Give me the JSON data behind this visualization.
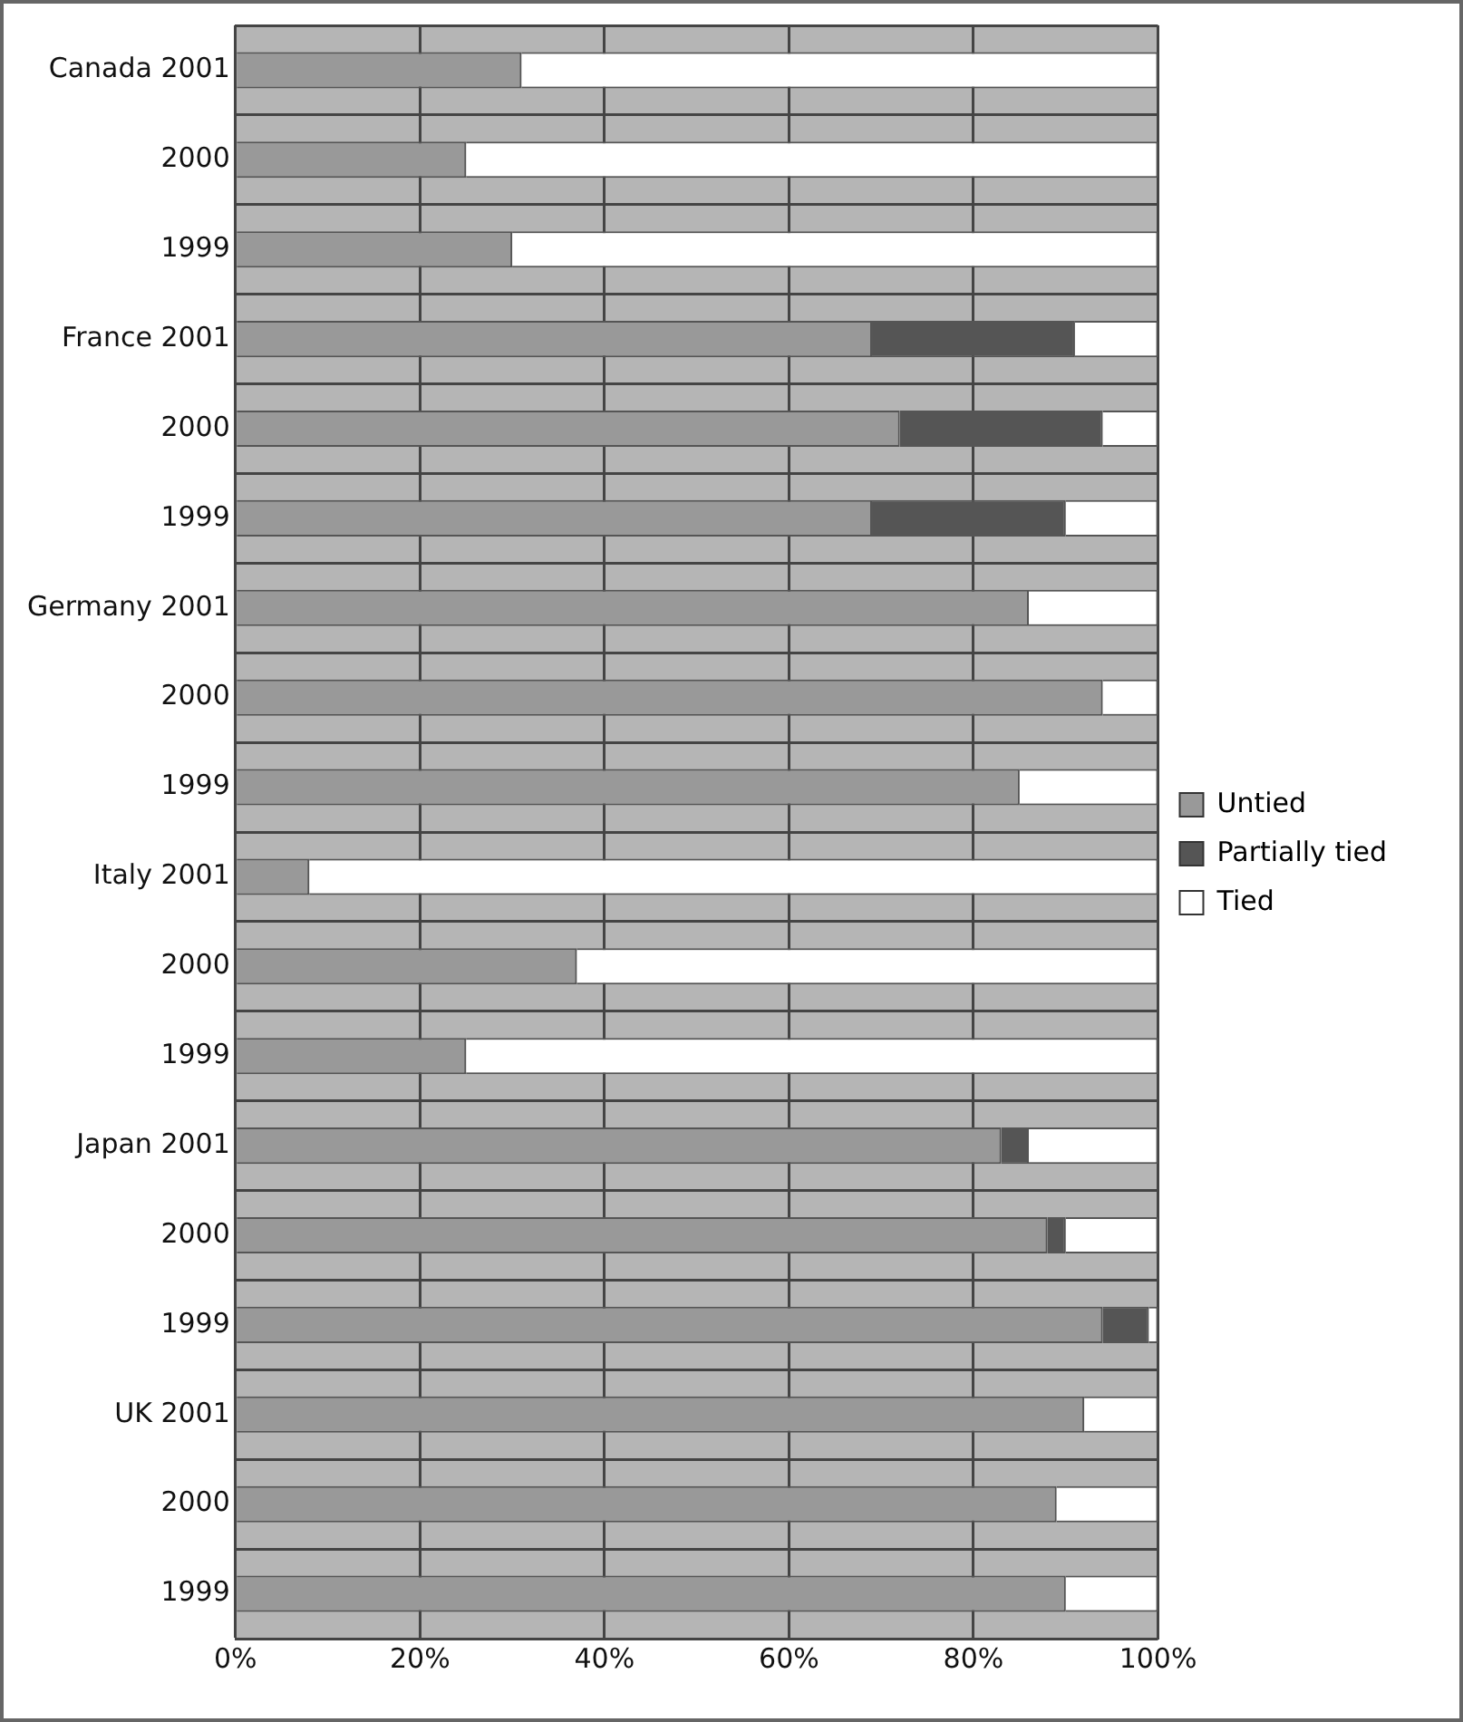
{
  "chart_data": {
    "type": "bar",
    "orientation": "horizontal",
    "stacked": true,
    "categories": [
      "Canada 2001",
      "2000",
      "1999",
      "France 2001",
      "2000",
      "1999",
      "Germany 2001",
      "2000",
      "1999",
      "Italy 2001",
      "2000",
      "1999",
      "Japan 2001",
      "2000",
      "1999",
      "UK 2001",
      "2000",
      "1999"
    ],
    "series": [
      {
        "name": "Untied",
        "color": "#999999",
        "values": [
          31,
          25,
          30,
          69,
          72,
          69,
          86,
          94,
          85,
          8,
          37,
          25,
          83,
          88,
          94,
          92,
          89,
          90
        ]
      },
      {
        "name": "Partially tied",
        "color": "#555555",
        "values": [
          0,
          0,
          0,
          22,
          22,
          21,
          0,
          0,
          0,
          0,
          0,
          0,
          3,
          2,
          5,
          0,
          0,
          0
        ]
      },
      {
        "name": "Tied",
        "color": "#ffffff",
        "values": [
          69,
          75,
          70,
          9,
          6,
          10,
          14,
          6,
          15,
          92,
          63,
          75,
          14,
          10,
          1,
          8,
          11,
          10
        ]
      }
    ],
    "xlim": [
      0,
      100
    ],
    "xticks": [
      {
        "value": 0,
        "label": "0%"
      },
      {
        "value": 20,
        "label": "20%"
      },
      {
        "value": 40,
        "label": "40%"
      },
      {
        "value": 60,
        "label": "60%"
      },
      {
        "value": 80,
        "label": "80%"
      },
      {
        "value": 100,
        "label": "100%"
      }
    ],
    "grid": true,
    "legend": "right"
  }
}
